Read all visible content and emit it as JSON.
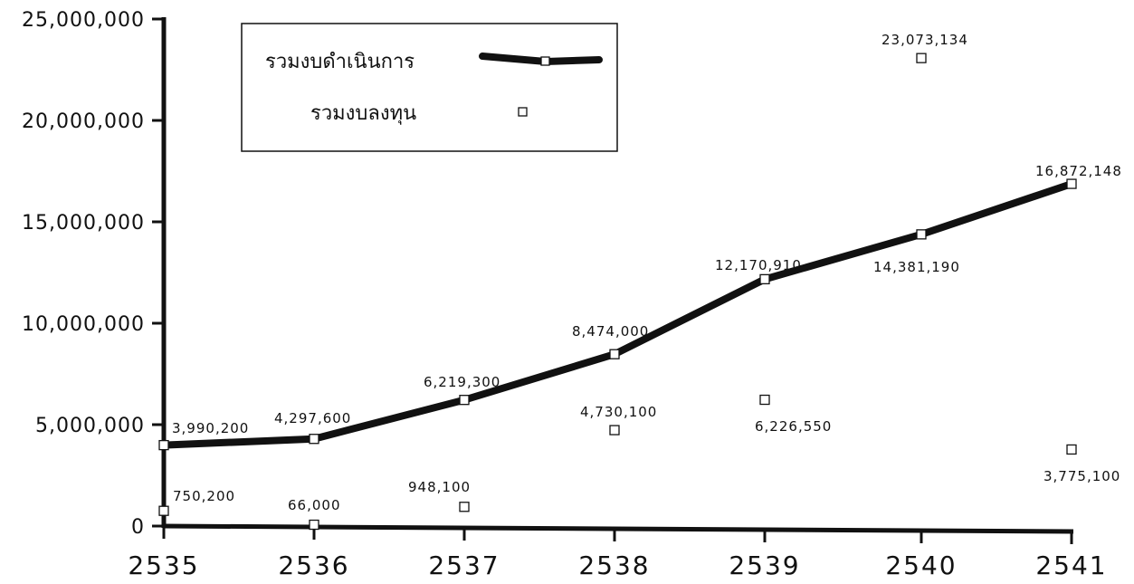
{
  "chart_data": {
    "type": "line",
    "title": "",
    "xlabel": "",
    "ylabel": "",
    "categories": [
      "2535",
      "2536",
      "2537",
      "2538",
      "2539",
      "2540",
      "2541"
    ],
    "ylim": [
      0,
      25000000
    ],
    "yticks": [
      "0",
      "5,000,000",
      "10,000,000",
      "15,000,000",
      "20,000,000",
      "25,000,000"
    ],
    "legend_position": "top-center",
    "grid": false,
    "series": [
      {
        "name": "รวมงบดำเนินการ",
        "style": "thick-line",
        "values": [
          3990200,
          4297600,
          6219300,
          8474000,
          12170910,
          14381190,
          16872148
        ],
        "labels": [
          "3,990,200",
          "4,297,600",
          "6,219,300",
          "8,474,000",
          "12,170,910",
          "14,381,190",
          "16,872,148"
        ]
      },
      {
        "name": "รวมงบลงทุน",
        "style": "square-marker",
        "values": [
          750200,
          66000,
          948100,
          4730100,
          6226550,
          23073134,
          3775100
        ],
        "labels": [
          "750,200",
          "66,000",
          "948,100",
          "4,730,100",
          "6,226,550",
          "23,073,134",
          "3,775,100"
        ]
      }
    ],
    "colors": {
      "line": "#111111",
      "marker_fill": "#ffffff",
      "axis": "#111111"
    }
  }
}
